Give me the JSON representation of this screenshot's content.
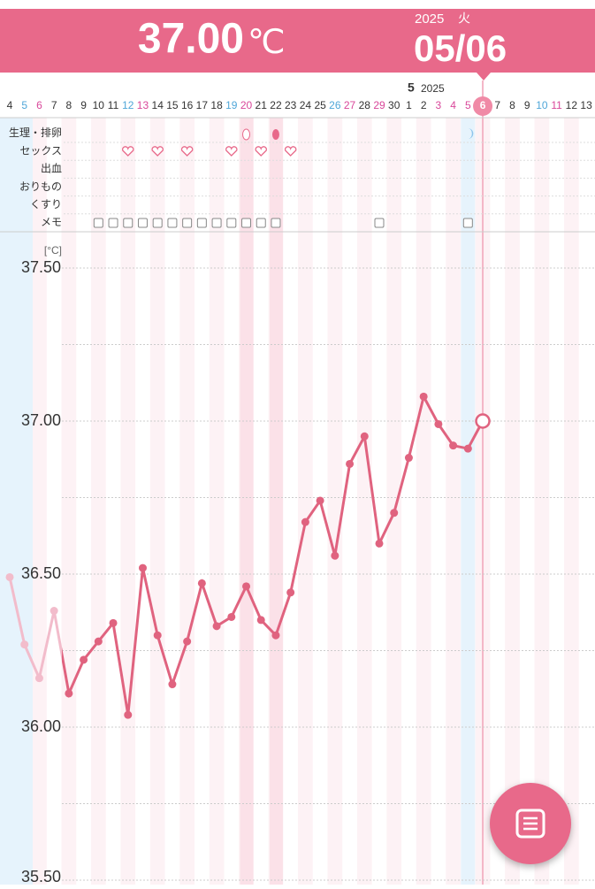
{
  "header": {
    "temperature": "37.00",
    "unit": "℃",
    "year": "2025",
    "weekday": "火",
    "date": "05/06"
  },
  "chart_data": {
    "type": "line",
    "month": "5",
    "year": "2025",
    "categories": [
      "4",
      "5",
      "6",
      "7",
      "8",
      "9",
      "10",
      "11",
      "12",
      "13",
      "14",
      "15",
      "16",
      "17",
      "18",
      "19",
      "20",
      "21",
      "22",
      "23",
      "24",
      "25",
      "26",
      "27",
      "28",
      "29",
      "30",
      "1",
      "2",
      "3",
      "4",
      "5",
      "6",
      "7",
      "8",
      "9",
      "10",
      "11",
      "12",
      "13"
    ],
    "category_colors": [
      "#333",
      "#4fa6d8",
      "#d9479a",
      "#333",
      "#333",
      "#333",
      "#333",
      "#333",
      "#4fa6d8",
      "#d9479a",
      "#333",
      "#333",
      "#333",
      "#333",
      "#333",
      "#4fa6d8",
      "#d9479a",
      "#333",
      "#333",
      "#333",
      "#333",
      "#333",
      "#4fa6d8",
      "#d9479a",
      "#333",
      "#d9479a",
      "#333",
      "#333",
      "#333",
      "#d9479a",
      "#d9479a",
      "#d9479a",
      "#ffffff",
      "#333",
      "#333",
      "#333",
      "#4fa6d8",
      "#d9479a",
      "#333",
      "#333"
    ],
    "row_labels": [
      "生理・排卵",
      "セックス",
      "出血",
      "おりもの",
      "くすり",
      "メモ"
    ],
    "ylabel": "[°C]",
    "series": [
      {
        "color": "#e0637f",
        "values": [
          36.49,
          36.27,
          36.16,
          36.38,
          36.11,
          36.22,
          36.28,
          36.34,
          36.04,
          36.52,
          36.3,
          36.14,
          36.28,
          36.47,
          36.33,
          36.36,
          36.46,
          36.35,
          36.3,
          36.44,
          36.67,
          36.74,
          36.56,
          36.86,
          36.95,
          36.6,
          36.7,
          36.88,
          37.08,
          36.99,
          36.92,
          36.91,
          37.0,
          null,
          null,
          null,
          null,
          null,
          null,
          null
        ]
      }
    ],
    "ylim": [
      35.5,
      37.6
    ],
    "yticks": [
      {
        "value": 35.5,
        "label": "35.50"
      },
      {
        "value": 36,
        "label": "36.00"
      },
      {
        "value": 36.5,
        "label": "36.50"
      },
      {
        "value": 37,
        "label": "37.00"
      },
      {
        "value": 37.5,
        "label": "37.50"
      }
    ],
    "ygrid": [
      35.75,
      36.25,
      36.75,
      37.25
    ],
    "grid": true
  }
}
